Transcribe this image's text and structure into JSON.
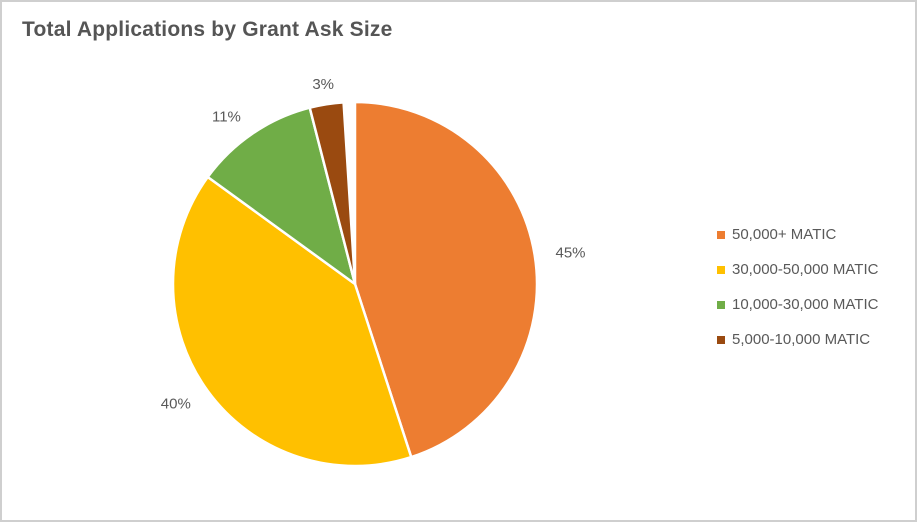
{
  "title": "Total Applications by Grant Ask Size",
  "colors": {
    "frame_border": "#cfcfcf",
    "background": "#ffffff",
    "title_text": "#555555",
    "label_text": "#595959"
  },
  "chart_data": {
    "type": "pie",
    "title": "Total Applications by Grant Ask Size",
    "start_angle_deg": 0,
    "direction": "clockwise",
    "legend_position": "right",
    "data_labels": "outside, percent",
    "slices": [
      {
        "label": "50,000+ MATIC",
        "value": 45,
        "data_label": "45%",
        "color": "#ED7D31"
      },
      {
        "label": "30,000-50,000 MATIC",
        "value": 40,
        "data_label": "40%",
        "color": "#FFC000"
      },
      {
        "label": "10,000-30,000 MATIC",
        "value": 11,
        "data_label": "11%",
        "color": "#70AD47"
      },
      {
        "label": "5,000-10,000 MATIC",
        "value": 3,
        "data_label": "3%",
        "color": "#9A4A10"
      }
    ]
  }
}
